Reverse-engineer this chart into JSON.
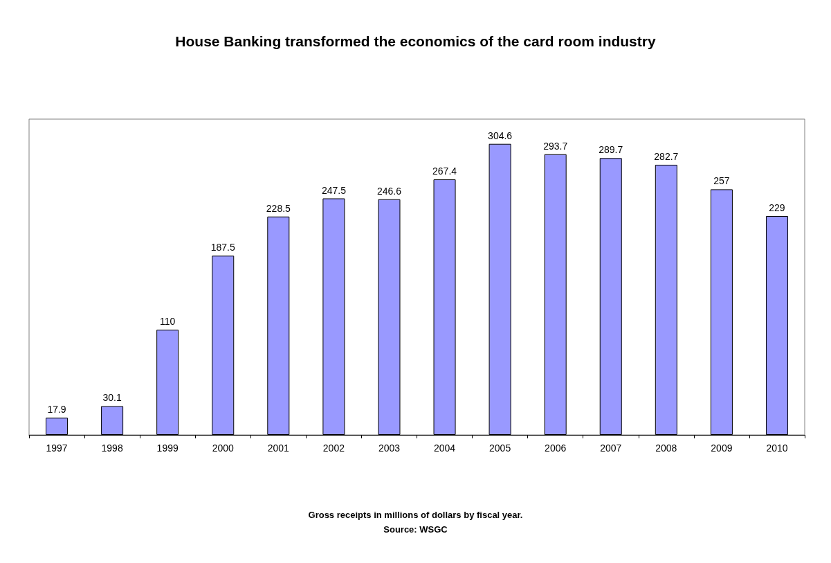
{
  "chart_data": {
    "type": "bar",
    "title": "House Banking transformed the economics of the card room industry",
    "annotations": [
      "Gross receipts in millions of dollars by fiscal year.",
      "Source: WSGC"
    ],
    "categories": [
      "1997",
      "1998",
      "1999",
      "2000",
      "2001",
      "2002",
      "2003",
      "2004",
      "2005",
      "2006",
      "2007",
      "2008",
      "2009",
      "2010"
    ],
    "values": [
      17.9,
      30.1,
      110,
      187.5,
      228.5,
      247.5,
      246.6,
      267.4,
      304.6,
      293.7,
      289.7,
      282.7,
      257,
      229
    ],
    "color": "#9999ff",
    "data_labels": true
  }
}
